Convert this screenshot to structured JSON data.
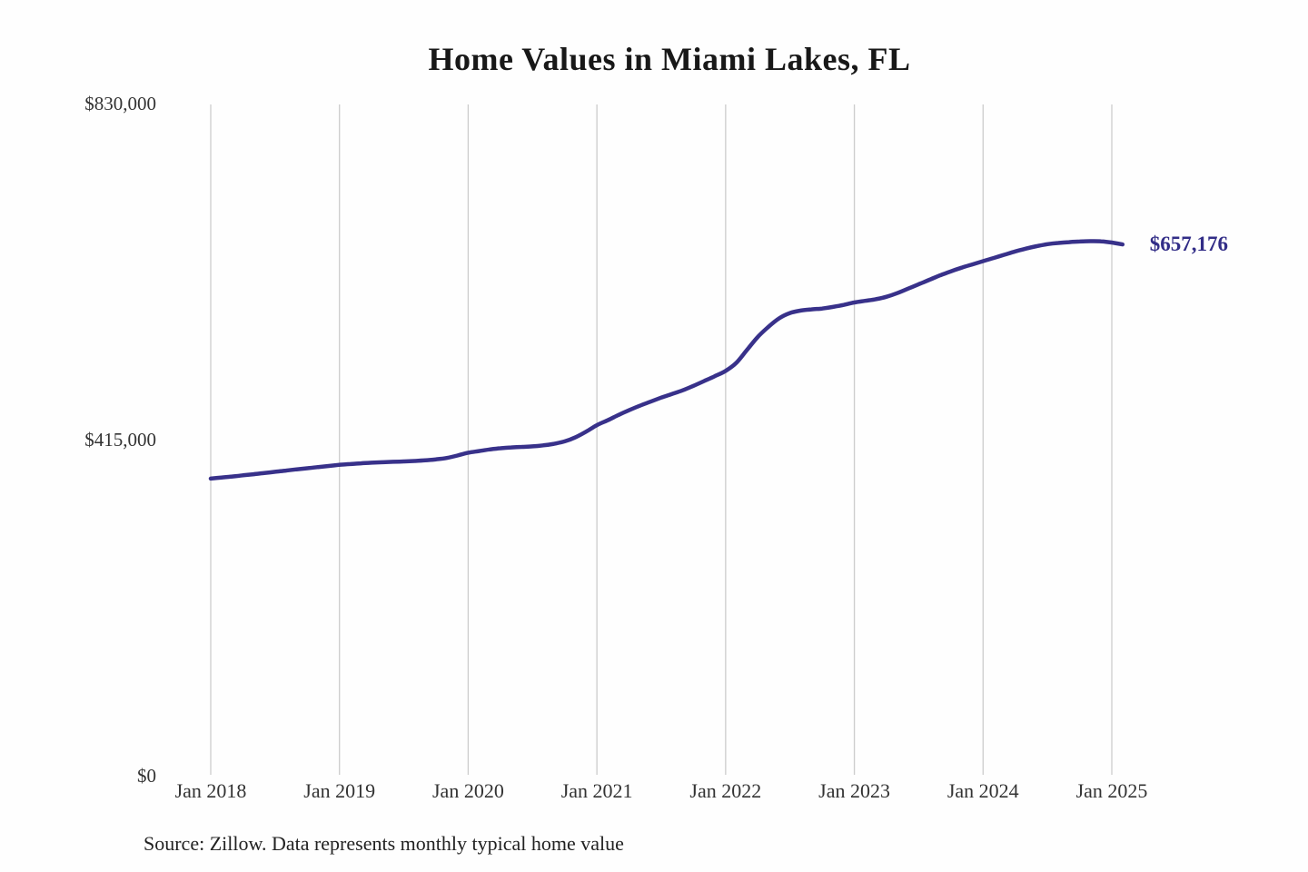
{
  "title": "Home Values in Miami Lakes, FL",
  "source_note": "Source: Zillow. Data represents monthly typical home value",
  "end_label": "$657,176",
  "colors": {
    "line": "#38318a",
    "end_label": "#322d87",
    "grid": "#cccccc",
    "title_text": "#181818",
    "axis_text": "#333333",
    "source_text": "#222222",
    "background": "#fefefe"
  },
  "chart_data": {
    "type": "line",
    "title": "Home Values in Miami Lakes, FL",
    "xlabel": "",
    "ylabel": "",
    "ylim": [
      0,
      830000
    ],
    "y_ticks": [
      830000,
      415000,
      0
    ],
    "y_tick_labels": [
      "$830,000",
      "$415,000",
      "$0"
    ],
    "x_tick_labels": [
      "Jan 2018",
      "Jan 2019",
      "Jan 2020",
      "Jan 2021",
      "Jan 2022",
      "Jan 2023",
      "Jan 2024",
      "Jan 2025"
    ],
    "grid": "vertical-only",
    "legend": "none",
    "series": [
      {
        "name": "Monthly typical home value",
        "start_month": "2018-01",
        "frequency": "monthly",
        "last_value": 657176,
        "last_value_label": "$657,176",
        "values": [
          368000,
          369300,
          370600,
          372000,
          373400,
          374900,
          376400,
          377900,
          379400,
          380800,
          382200,
          383600,
          385000,
          386000,
          386900,
          387600,
          388200,
          388700,
          389200,
          389800,
          390600,
          391800,
          393500,
          396500,
          400000,
          402000,
          404000,
          405500,
          406500,
          407200,
          407800,
          409000,
          411000,
          414000,
          419000,
          426000,
          434000,
          440000,
          446500,
          452500,
          458000,
          463000,
          468000,
          472500,
          477000,
          482500,
          488500,
          494500,
          501000,
          511000,
          527000,
          543000,
          555500,
          566000,
          572500,
          575500,
          577000,
          578000,
          580000,
          582500,
          585500,
          587500,
          589500,
          592500,
          597000,
          602500,
          608000,
          613500,
          619000,
          624000,
          628500,
          632500,
          636500,
          640500,
          644500,
          648500,
          652000,
          655000,
          657500,
          659000,
          660000,
          660800,
          661200,
          661000,
          659500,
          657176
        ]
      }
    ]
  }
}
